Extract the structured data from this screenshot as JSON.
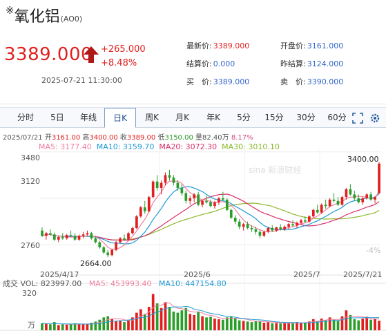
{
  "header": {
    "mark": "※",
    "name": "氧化铝",
    "code": "(AO0)",
    "price": "3389.000",
    "change": "+265.000",
    "change_pct": "+8.48%",
    "datetime": "2025-07-21 11:30:00",
    "stats": {
      "latest_label": "最新价:",
      "latest_value": "3389.000",
      "open_label": "开盘价:",
      "open_value": "3161.000",
      "settle_label": "结算价:",
      "settle_value": "0.000",
      "prev_settle_label": "昨结算:",
      "prev_settle_value": "3124.000",
      "buy_label": "买　价:",
      "buy_value": "3389.000",
      "sell_label": "卖　价:",
      "sell_value": "3390.000"
    },
    "colors": {
      "up": "#e02020",
      "down": "#2a9d2a"
    }
  },
  "tabs": [
    "分时",
    "5日",
    "年线",
    "日K",
    "周K",
    "月K",
    "年K",
    "5分",
    "15分",
    "30分",
    "60分"
  ],
  "active_tab": "日K",
  "icons": [
    "fullscreen-icon",
    "settings-icon"
  ],
  "kline_info": {
    "date": "2025/07/21",
    "open_label": "开",
    "open": "3161.00",
    "high_label": "高",
    "high": "3400.00",
    "close_label": "收",
    "close": "3389.00",
    "low_label": "低",
    "low": "3150.00",
    "volume_label": "量",
    "volume": "82.40万",
    "pct": "8.17%",
    "ma5": "MA5: 3177.40",
    "ma10": "MA10: 3159.70",
    "ma20": "MA20: 3072.30",
    "ma30": "MA30: 3010.10"
  },
  "volume_info": {
    "title": "成交",
    "vol": "VOL: 823997.00",
    "ma5": "MA5: 453993.40",
    "ma10": "MA10: 447154.80",
    "y_max": "320",
    "unit": "万"
  },
  "chart_data": {
    "type": "candlestick",
    "y_ticks": [
      "3480",
      "3120",
      "2760"
    ],
    "right_axis_label": "-4%",
    "x_labels": [
      "2025/4/17",
      "2025/6",
      "2025/7",
      "2025/7/21"
    ],
    "annotations": {
      "max_label": "3400.00",
      "min_label": "2664.00"
    },
    "y_range": [
      2590,
      3500
    ],
    "ohlc": [
      [
        2870,
        2895,
        2820,
        2830
      ],
      [
        2830,
        2860,
        2800,
        2850
      ],
      [
        2850,
        2880,
        2830,
        2840
      ],
      [
        2840,
        2855,
        2790,
        2800
      ],
      [
        2800,
        2830,
        2780,
        2820
      ],
      [
        2820,
        2850,
        2800,
        2810
      ],
      [
        2810,
        2845,
        2800,
        2835
      ],
      [
        2835,
        2870,
        2820,
        2830
      ],
      [
        2830,
        2850,
        2790,
        2800
      ],
      [
        2800,
        2840,
        2790,
        2830
      ],
      [
        2830,
        2860,
        2810,
        2840
      ],
      [
        2840,
        2870,
        2830,
        2850
      ],
      [
        2850,
        2860,
        2800,
        2810
      ],
      [
        2810,
        2830,
        2770,
        2780
      ],
      [
        2780,
        2790,
        2730,
        2740
      ],
      [
        2740,
        2750,
        2690,
        2700
      ],
      [
        2700,
        2720,
        2664,
        2680
      ],
      [
        2680,
        2730,
        2670,
        2720
      ],
      [
        2720,
        2790,
        2710,
        2780
      ],
      [
        2780,
        2820,
        2770,
        2810
      ],
      [
        2810,
        2840,
        2790,
        2800
      ],
      [
        2800,
        2860,
        2790,
        2850
      ],
      [
        2850,
        2900,
        2840,
        2890
      ],
      [
        2890,
        2990,
        2880,
        2980
      ],
      [
        2980,
        3060,
        2970,
        3050
      ],
      [
        3050,
        3100,
        3000,
        3020
      ],
      [
        3020,
        3140,
        3010,
        3130
      ],
      [
        3130,
        3260,
        3120,
        3250
      ],
      [
        3250,
        3300,
        3180,
        3200
      ],
      [
        3200,
        3260,
        3150,
        3240
      ],
      [
        3240,
        3320,
        3220,
        3300
      ],
      [
        3300,
        3340,
        3260,
        3280
      ],
      [
        3280,
        3300,
        3220,
        3240
      ],
      [
        3240,
        3260,
        3180,
        3200
      ],
      [
        3200,
        3230,
        3140,
        3160
      ],
      [
        3160,
        3180,
        3080,
        3100
      ],
      [
        3100,
        3140,
        3070,
        3120
      ],
      [
        3120,
        3160,
        3090,
        3150
      ],
      [
        3150,
        3170,
        3060,
        3070
      ],
      [
        3070,
        3110,
        3050,
        3100
      ],
      [
        3100,
        3140,
        3080,
        3090
      ],
      [
        3090,
        3110,
        3050,
        3060
      ],
      [
        3060,
        3100,
        3040,
        3090
      ],
      [
        3090,
        3130,
        3070,
        3120
      ],
      [
        3120,
        3170,
        3100,
        3110
      ],
      [
        3110,
        3120,
        3020,
        3030
      ],
      [
        3030,
        3040,
        2960,
        2970
      ],
      [
        2970,
        2990,
        2920,
        2940
      ],
      [
        2940,
        2960,
        2880,
        2900
      ],
      [
        2900,
        2930,
        2870,
        2920
      ],
      [
        2920,
        2940,
        2880,
        2890
      ],
      [
        2890,
        2910,
        2860,
        2880
      ],
      [
        2880,
        2900,
        2840,
        2860
      ],
      [
        2860,
        2880,
        2810,
        2830
      ],
      [
        2830,
        2870,
        2820,
        2860
      ],
      [
        2860,
        2900,
        2850,
        2890
      ],
      [
        2890,
        2910,
        2860,
        2870
      ],
      [
        2870,
        2900,
        2860,
        2895
      ],
      [
        2895,
        2920,
        2870,
        2880
      ],
      [
        2880,
        2910,
        2870,
        2900
      ],
      [
        2900,
        2930,
        2880,
        2920
      ],
      [
        2920,
        2950,
        2900,
        2910
      ],
      [
        2910,
        2940,
        2890,
        2930
      ],
      [
        2930,
        2960,
        2920,
        2950
      ],
      [
        2950,
        2980,
        2930,
        2940
      ],
      [
        2940,
        2990,
        2930,
        2980
      ],
      [
        2980,
        3040,
        2970,
        3030
      ],
      [
        3030,
        3070,
        3000,
        3010
      ],
      [
        3010,
        3080,
        3000,
        3070
      ],
      [
        3070,
        3110,
        3040,
        3060
      ],
      [
        3060,
        3120,
        3050,
        3110
      ],
      [
        3110,
        3160,
        3090,
        3100
      ],
      [
        3100,
        3130,
        3060,
        3070
      ],
      [
        3070,
        3140,
        3060,
        3130
      ],
      [
        3130,
        3200,
        3110,
        3190
      ],
      [
        3190,
        3230,
        3140,
        3150
      ],
      [
        3150,
        3180,
        3100,
        3120
      ],
      [
        3120,
        3150,
        3080,
        3090
      ],
      [
        3090,
        3130,
        3070,
        3120
      ],
      [
        3120,
        3160,
        3110,
        3150
      ],
      [
        3150,
        3170,
        3100,
        3110
      ],
      [
        3110,
        3140,
        3080,
        3130
      ],
      [
        3161,
        3400,
        3150,
        3389
      ]
    ],
    "volume": [
      60,
      55,
      50,
      70,
      45,
      50,
      48,
      52,
      60,
      55,
      50,
      52,
      65,
      75,
      90,
      110,
      120,
      95,
      80,
      85,
      70,
      90,
      110,
      150,
      180,
      140,
      200,
      310,
      230,
      190,
      240,
      200,
      160,
      150,
      170,
      190,
      140,
      130,
      160,
      120,
      110,
      115,
      100,
      95,
      90,
      110,
      120,
      100,
      85,
      80,
      75,
      70,
      80,
      78,
      65,
      70,
      60,
      62,
      58,
      60,
      65,
      60,
      70,
      62,
      68,
      75,
      95,
      80,
      100,
      85,
      110,
      90,
      80,
      120,
      170,
      130,
      95,
      85,
      100,
      115,
      90,
      100,
      82
    ]
  }
}
